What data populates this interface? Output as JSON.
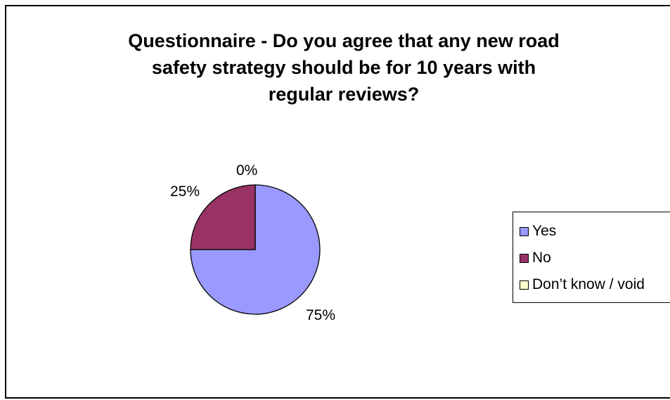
{
  "chart_data": {
    "type": "pie",
    "title": [
      "Questionnaire - Do you agree that any new road",
      "safety strategy should be for 10 years with",
      "regular reviews?"
    ],
    "categories": [
      "Yes",
      "No",
      "Don’t know / void"
    ],
    "values": [
      75,
      25,
      0
    ],
    "data_labels": [
      "75%",
      "25%",
      "0%"
    ],
    "colors": [
      "#9999FF",
      "#993366",
      "#FFFFCC"
    ],
    "legend_position": "right"
  }
}
